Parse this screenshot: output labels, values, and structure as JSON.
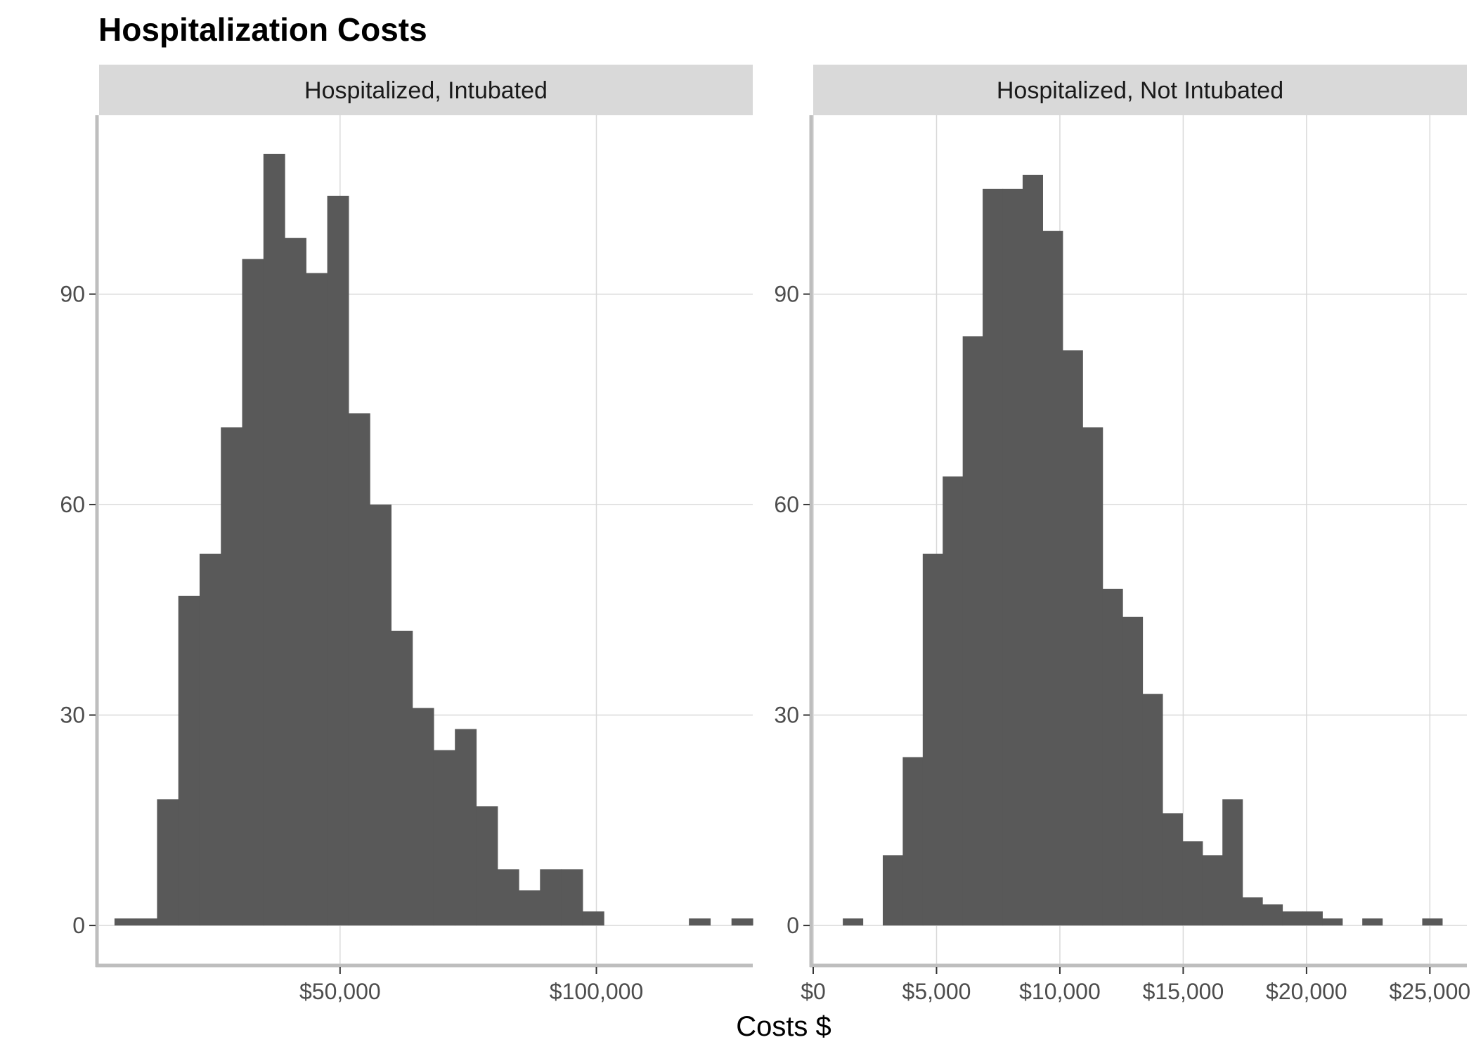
{
  "chart_data": {
    "type": "bar",
    "title": "Hospitalization Costs",
    "xlabel": "Costs $",
    "ylabel": "",
    "grid": true,
    "legend": "none",
    "bar_color": "#595959",
    "strip_color": "#d9d9d9",
    "axis_color": "#bebebe",
    "grid_color": "#d9d9d9",
    "panels": [
      {
        "strip": "Hospitalized, Intubated",
        "xlim": [
          3000,
          130500
        ],
        "ylim": [
          -5.5,
          115.5
        ],
        "x_ticks": [
          {
            "value": 50000,
            "label": "$50,000"
          },
          {
            "value": 100000,
            "label": "$100,000"
          }
        ],
        "y_ticks": [
          {
            "value": 0,
            "label": "0"
          },
          {
            "value": 30,
            "label": "30"
          },
          {
            "value": 60,
            "label": "60"
          },
          {
            "value": 90,
            "label": "90"
          }
        ],
        "bin_start": 6000,
        "bin_width": 4150,
        "values": [
          1,
          1,
          18,
          47,
          53,
          71,
          95,
          110,
          98,
          93,
          104,
          73,
          60,
          42,
          31,
          25,
          28,
          17,
          8,
          5,
          8,
          8,
          2,
          0,
          0,
          0,
          0,
          1,
          0,
          1
        ]
      },
      {
        "strip": "Hospitalized, Not Intubated",
        "xlim": [
          0,
          26500
        ],
        "ylim": [
          -5.5,
          115.5
        ],
        "x_ticks": [
          {
            "value": 0,
            "label": "$0"
          },
          {
            "value": 5000,
            "label": "$5,000"
          },
          {
            "value": 10000,
            "label": "$10,000"
          },
          {
            "value": 15000,
            "label": "$15,000"
          },
          {
            "value": 20000,
            "label": "$20,000"
          },
          {
            "value": 25000,
            "label": "$25,000"
          }
        ],
        "y_ticks": [
          {
            "value": 0,
            "label": "0"
          },
          {
            "value": 30,
            "label": "30"
          },
          {
            "value": 60,
            "label": "60"
          },
          {
            "value": 90,
            "label": "90"
          }
        ],
        "bin_start": 1200,
        "bin_width": 810,
        "values": [
          1,
          0,
          10,
          24,
          53,
          64,
          84,
          105,
          105,
          107,
          99,
          82,
          71,
          48,
          44,
          33,
          16,
          12,
          10,
          18,
          4,
          3,
          2,
          2,
          1,
          0,
          1,
          0,
          0,
          1
        ]
      }
    ]
  }
}
